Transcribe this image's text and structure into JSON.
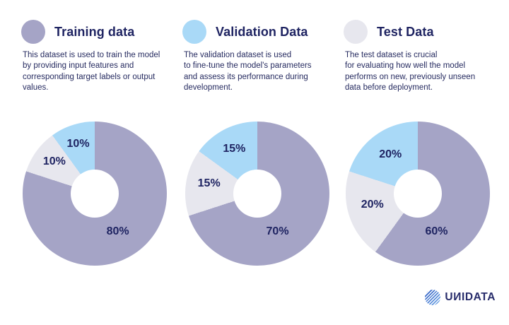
{
  "page": {
    "background": "#ffffff"
  },
  "colors": {
    "training_purple": "#a5a4c6",
    "validation_blue": "#a9d9f7",
    "test_gray": "#e7e7ee",
    "text_navy": "#1f2462",
    "logo_blue": "#2a57be"
  },
  "legend": [
    {
      "title": "Training data",
      "color": "#a5a4c6",
      "description": "This dataset is used to train the model\nby providing input features and\ncorresponding target labels or output\nvalues."
    },
    {
      "title": "Validation Data",
      "color": "#a9d9f7",
      "description": "The validation dataset is used\nto fine-tune the model's parameters\nand assess its performance during\ndevelopment."
    },
    {
      "title": "Test Data",
      "color": "#e7e7ee",
      "description": "The test dataset is crucial\nfor evaluating how well the model\nperforms on new, previously unseen\ndata before deployment."
    }
  ],
  "chart_data": [
    {
      "type": "pie",
      "donut": true,
      "start_angle_deg": 0,
      "direction": "clockwise",
      "slices": [
        {
          "label": "Training data",
          "value": 80,
          "display": "80%",
          "color": "#a5a4c6"
        },
        {
          "label": "Test Data",
          "value": 10,
          "display": "10%",
          "color": "#e7e7ee"
        },
        {
          "label": "Validation Data",
          "value": 10,
          "display": "10%",
          "color": "#a9d9f7"
        }
      ]
    },
    {
      "type": "pie",
      "donut": true,
      "start_angle_deg": 0,
      "direction": "clockwise",
      "slices": [
        {
          "label": "Training data",
          "value": 70,
          "display": "70%",
          "color": "#a5a4c6"
        },
        {
          "label": "Test Data",
          "value": 15,
          "display": "15%",
          "color": "#e7e7ee"
        },
        {
          "label": "Validation Data",
          "value": 15,
          "display": "15%",
          "color": "#a9d9f7"
        }
      ]
    },
    {
      "type": "pie",
      "donut": true,
      "start_angle_deg": 0,
      "direction": "clockwise",
      "slices": [
        {
          "label": "Training data",
          "value": 60,
          "display": "60%",
          "color": "#a5a4c6"
        },
        {
          "label": "Test Data",
          "value": 20,
          "display": "20%",
          "color": "#e7e7ee"
        },
        {
          "label": "Validation Data",
          "value": 20,
          "display": "20%",
          "color": "#a9d9f7"
        }
      ]
    }
  ],
  "logo": {
    "text": "UИIDATA"
  }
}
